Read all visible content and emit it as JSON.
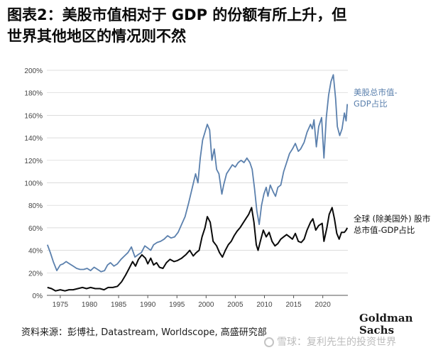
{
  "title": {
    "line1": "图表2：美股市值相对于 GDP 的份额有所上升，但",
    "line2": "世界其他地区的情况则不然"
  },
  "source": "资料来源：彭博社, Datastream, Worldscope, 高盛研究部",
  "logo": {
    "line1": "Goldman",
    "line2": "Sachs"
  },
  "watermark": "雪球：复利先生的投资世界",
  "colors": {
    "us": "#5b80ad",
    "world": "#0a0a0a",
    "axis": "#555555",
    "grid": "#d0d0d0"
  },
  "chart_data": {
    "type": "line",
    "title": "",
    "xlabel": "",
    "ylabel": "",
    "xlim": [
      1972.7,
      2024.3
    ],
    "ylim": [
      0,
      200
    ],
    "x_ticks": [
      1975,
      1980,
      1985,
      1990,
      1995,
      2000,
      2005,
      2010,
      2015,
      2020
    ],
    "y_ticks": [
      0,
      20,
      40,
      60,
      80,
      100,
      120,
      140,
      160,
      180,
      200
    ],
    "y_tick_suffix": "%",
    "grid": "horizontal",
    "series": [
      {
        "name": "美股总市值-GDP占比",
        "label_lines": [
          "美股总市值-",
          "GDP占比"
        ],
        "color": "#5b80ad",
        "points": [
          [
            1972.8,
            45
          ],
          [
            1973.3,
            38
          ],
          [
            1973.8,
            30
          ],
          [
            1974.4,
            22
          ],
          [
            1975.0,
            27
          ],
          [
            1975.5,
            28
          ],
          [
            1976.0,
            30
          ],
          [
            1976.6,
            28
          ],
          [
            1977.2,
            26
          ],
          [
            1977.8,
            24
          ],
          [
            1978.4,
            23
          ],
          [
            1979.0,
            23
          ],
          [
            1979.6,
            24
          ],
          [
            1980.2,
            22
          ],
          [
            1980.8,
            25
          ],
          [
            1981.4,
            23
          ],
          [
            1982.0,
            21
          ],
          [
            1982.6,
            22
          ],
          [
            1983.1,
            27
          ],
          [
            1983.6,
            29
          ],
          [
            1984.2,
            26
          ],
          [
            1984.8,
            28
          ],
          [
            1985.4,
            32
          ],
          [
            1986.0,
            35
          ],
          [
            1986.6,
            38
          ],
          [
            1987.2,
            43
          ],
          [
            1987.8,
            34
          ],
          [
            1988.3,
            36
          ],
          [
            1988.9,
            38
          ],
          [
            1989.5,
            44
          ],
          [
            1990.0,
            42
          ],
          [
            1990.5,
            40
          ],
          [
            1991.0,
            45
          ],
          [
            1991.6,
            47
          ],
          [
            1992.2,
            48
          ],
          [
            1992.8,
            50
          ],
          [
            1993.4,
            53
          ],
          [
            1994.0,
            51
          ],
          [
            1994.6,
            52
          ],
          [
            1995.2,
            56
          ],
          [
            1995.8,
            63
          ],
          [
            1996.4,
            70
          ],
          [
            1997.0,
            82
          ],
          [
            1997.6,
            95
          ],
          [
            1998.2,
            108
          ],
          [
            1998.6,
            100
          ],
          [
            1999.0,
            122
          ],
          [
            1999.4,
            138
          ],
          [
            1999.8,
            145
          ],
          [
            2000.2,
            152
          ],
          [
            2000.6,
            147
          ],
          [
            2001.0,
            120
          ],
          [
            2001.4,
            130
          ],
          [
            2001.8,
            112
          ],
          [
            2002.2,
            108
          ],
          [
            2002.7,
            90
          ],
          [
            2003.0,
            98
          ],
          [
            2003.5,
            108
          ],
          [
            2004.0,
            112
          ],
          [
            2004.5,
            116
          ],
          [
            2005.0,
            114
          ],
          [
            2005.5,
            118
          ],
          [
            2006.0,
            120
          ],
          [
            2006.5,
            118
          ],
          [
            2007.0,
            122
          ],
          [
            2007.5,
            118
          ],
          [
            2007.9,
            112
          ],
          [
            2008.3,
            95
          ],
          [
            2008.7,
            75
          ],
          [
            2009.1,
            63
          ],
          [
            2009.5,
            80
          ],
          [
            2009.9,
            90
          ],
          [
            2010.3,
            96
          ],
          [
            2010.6,
            88
          ],
          [
            2011.0,
            98
          ],
          [
            2011.5,
            92
          ],
          [
            2011.9,
            88
          ],
          [
            2012.3,
            96
          ],
          [
            2012.8,
            98
          ],
          [
            2013.3,
            110
          ],
          [
            2013.8,
            118
          ],
          [
            2014.3,
            126
          ],
          [
            2014.8,
            130
          ],
          [
            2015.3,
            135
          ],
          [
            2015.8,
            128
          ],
          [
            2016.2,
            130
          ],
          [
            2016.8,
            136
          ],
          [
            2017.3,
            145
          ],
          [
            2017.9,
            152
          ],
          [
            2018.2,
            148
          ],
          [
            2018.5,
            156
          ],
          [
            2018.9,
            132
          ],
          [
            2019.3,
            150
          ],
          [
            2019.8,
            158
          ],
          [
            2020.2,
            122
          ],
          [
            2020.6,
            158
          ],
          [
            2021.0,
            178
          ],
          [
            2021.4,
            190
          ],
          [
            2021.8,
            196
          ],
          [
            2022.2,
            175
          ],
          [
            2022.5,
            150
          ],
          [
            2022.9,
            142
          ],
          [
            2023.3,
            148
          ],
          [
            2023.7,
            162
          ],
          [
            2024.0,
            155
          ],
          [
            2024.2,
            170
          ]
        ]
      },
      {
        "name": "全球(除美国外)股市总市值-GDP占比",
        "label_lines": [
          "全球 (除美国外) 股市",
          "总市值-GDP占比"
        ],
        "color": "#0a0a0a",
        "points": [
          [
            1972.8,
            7
          ],
          [
            1973.5,
            6
          ],
          [
            1974.2,
            4
          ],
          [
            1975.0,
            5
          ],
          [
            1975.8,
            4
          ],
          [
            1976.5,
            5
          ],
          [
            1977.2,
            5
          ],
          [
            1978.0,
            6
          ],
          [
            1978.8,
            7
          ],
          [
            1979.5,
            6
          ],
          [
            1980.2,
            7
          ],
          [
            1981.0,
            6
          ],
          [
            1981.8,
            6
          ],
          [
            1982.5,
            5
          ],
          [
            1983.2,
            7
          ],
          [
            1984.0,
            7
          ],
          [
            1984.8,
            8
          ],
          [
            1985.5,
            12
          ],
          [
            1986.2,
            18
          ],
          [
            1986.8,
            24
          ],
          [
            1987.4,
            30
          ],
          [
            1987.9,
            26
          ],
          [
            1988.4,
            32
          ],
          [
            1989.0,
            36
          ],
          [
            1989.6,
            33
          ],
          [
            1990.0,
            28
          ],
          [
            1990.5,
            33
          ],
          [
            1991.0,
            27
          ],
          [
            1991.5,
            29
          ],
          [
            1992.0,
            25
          ],
          [
            1992.6,
            24
          ],
          [
            1993.2,
            29
          ],
          [
            1993.8,
            32
          ],
          [
            1994.5,
            30
          ],
          [
            1995.1,
            31
          ],
          [
            1995.8,
            33
          ],
          [
            1996.5,
            36
          ],
          [
            1997.2,
            40
          ],
          [
            1997.8,
            35
          ],
          [
            1998.3,
            38
          ],
          [
            1998.8,
            40
          ],
          [
            1999.3,
            52
          ],
          [
            1999.8,
            60
          ],
          [
            2000.2,
            70
          ],
          [
            2000.7,
            65
          ],
          [
            2001.2,
            48
          ],
          [
            2001.8,
            44
          ],
          [
            2002.3,
            38
          ],
          [
            2002.8,
            34
          ],
          [
            2003.3,
            40
          ],
          [
            2003.8,
            45
          ],
          [
            2004.3,
            48
          ],
          [
            2004.8,
            53
          ],
          [
            2005.3,
            57
          ],
          [
            2005.8,
            60
          ],
          [
            2006.3,
            64
          ],
          [
            2006.8,
            68
          ],
          [
            2007.3,
            72
          ],
          [
            2007.8,
            78
          ],
          [
            2008.2,
            65
          ],
          [
            2008.6,
            45
          ],
          [
            2008.9,
            40
          ],
          [
            2009.3,
            48
          ],
          [
            2009.8,
            58
          ],
          [
            2010.3,
            52
          ],
          [
            2010.8,
            56
          ],
          [
            2011.3,
            48
          ],
          [
            2011.8,
            44
          ],
          [
            2012.3,
            46
          ],
          [
            2012.8,
            50
          ],
          [
            2013.3,
            52
          ],
          [
            2013.8,
            54
          ],
          [
            2014.3,
            52
          ],
          [
            2014.8,
            50
          ],
          [
            2015.3,
            55
          ],
          [
            2015.8,
            48
          ],
          [
            2016.3,
            47
          ],
          [
            2016.8,
            50
          ],
          [
            2017.3,
            58
          ],
          [
            2017.9,
            65
          ],
          [
            2018.3,
            68
          ],
          [
            2018.8,
            58
          ],
          [
            2019.3,
            62
          ],
          [
            2019.9,
            64
          ],
          [
            2020.2,
            48
          ],
          [
            2020.7,
            60
          ],
          [
            2021.1,
            72
          ],
          [
            2021.6,
            78
          ],
          [
            2022.0,
            68
          ],
          [
            2022.4,
            55
          ],
          [
            2022.8,
            50
          ],
          [
            2023.2,
            56
          ],
          [
            2023.7,
            56
          ],
          [
            2024.0,
            58
          ],
          [
            2024.2,
            60
          ]
        ]
      }
    ]
  }
}
